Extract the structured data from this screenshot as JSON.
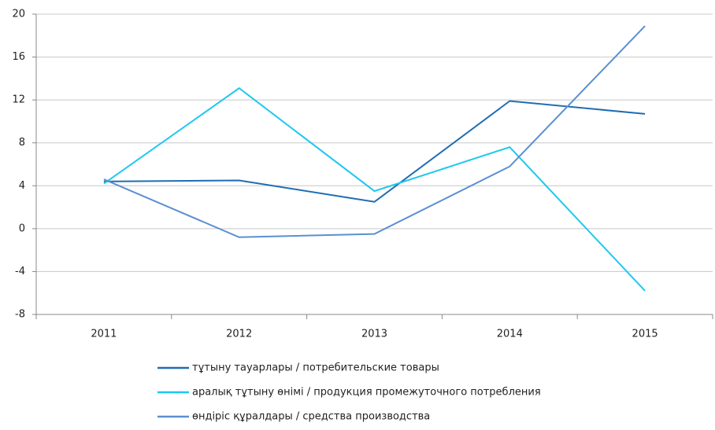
{
  "chart_data": {
    "type": "line",
    "categories": [
      "2011",
      "2012",
      "2013",
      "2014",
      "2015"
    ],
    "series": [
      {
        "name": "тұтыну тауарлары / потребительские товары",
        "color": "#1f6db3",
        "values": [
          4.4,
          4.5,
          2.5,
          11.9,
          10.7
        ]
      },
      {
        "name": "аралық тұтыну өнімі / продукция промежуточного потребления",
        "color": "#1ec8f0",
        "values": [
          4.2,
          13.1,
          3.5,
          7.6,
          -5.8
        ]
      },
      {
        "name": "өндіріс құралдары / средства производства",
        "color": "#5b8fd0",
        "values": [
          4.6,
          -0.8,
          -0.5,
          5.8,
          18.9
        ]
      }
    ],
    "ylim": [
      -8,
      20
    ],
    "yticks": [
      -8,
      -4,
      0,
      4,
      8,
      12,
      16,
      20
    ],
    "grid": true,
    "legend": "bottom"
  }
}
